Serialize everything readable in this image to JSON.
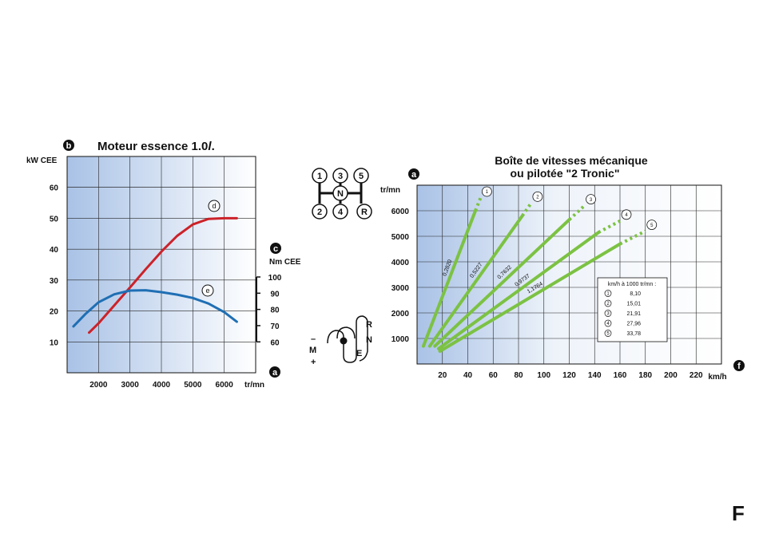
{
  "page_letter": "F",
  "chart_data": [
    {
      "type": "line",
      "title": "Moteur essence 1.0",
      "title_italic": "l",
      "title_suffix": ".",
      "xlabel": "tr/mn",
      "xlim": [
        1000,
        7000
      ],
      "x_ticks": [
        2000,
        3000,
        4000,
        5000,
        6000
      ],
      "ylabel_left": "kW CEE",
      "ylim_left": [
        0,
        70
      ],
      "y_ticks_left": [
        10,
        20,
        30,
        40,
        50,
        60
      ],
      "ylabel_right": "Nm CEE",
      "ylim_right": [
        60,
        100
      ],
      "y_ticks_right": [
        60,
        70,
        80,
        90,
        100
      ],
      "grid": true,
      "badges": {
        "left_axis": "b",
        "right_axis": "c",
        "x_axis": "a"
      },
      "series": [
        {
          "name": "d",
          "color": "#cc2229",
          "axis": "left",
          "x": [
            1700,
            2000,
            2500,
            3000,
            3500,
            4000,
            4500,
            5000,
            5500,
            6000,
            6400
          ],
          "y": [
            13,
            16,
            21.8,
            27.6,
            33.5,
            39.2,
            44.3,
            48,
            49.8,
            50,
            50
          ]
        },
        {
          "name": "e",
          "color": "#1f6fb4",
          "axis": "left",
          "x": [
            1200,
            1600,
            2000,
            2500,
            3000,
            3500,
            4000,
            4500,
            5000,
            5500,
            6000,
            6400
          ],
          "y": [
            15,
            19.2,
            22.8,
            25.4,
            26.6,
            26.7,
            26.1,
            25.3,
            24.2,
            22.4,
            19.6,
            16.5
          ]
        }
      ]
    },
    {
      "type": "line",
      "title_line1": "Boîte de vitesses mécanique",
      "title_line2": "ou pilotée \"2 Tronic\"",
      "xlabel": "km/h",
      "xlim": [
        0,
        240
      ],
      "x_ticks": [
        20,
        40,
        60,
        80,
        100,
        120,
        140,
        160,
        180,
        200,
        220
      ],
      "ylabel": "tr/mn",
      "ylim": [
        0,
        7000
      ],
      "y_ticks": [
        1000,
        2000,
        3000,
        4000,
        5000,
        6000
      ],
      "grid": true,
      "badges": {
        "y_axis": "a",
        "x_axis": "f"
      },
      "series_color": "#7cc243",
      "series": [
        {
          "name": "1",
          "ratio": "0,2820",
          "x": [
            5,
            46
          ],
          "y": [
            700,
            6000
          ],
          "dash_to": [
            50,
            6500
          ]
        },
        {
          "name": "2",
          "ratio": "0,5227",
          "x": [
            10,
            83
          ],
          "y": [
            700,
            5800
          ],
          "dash_to": [
            90,
            6300
          ]
        },
        {
          "name": "3",
          "ratio": "0,7632",
          "x": [
            14,
            120
          ],
          "y": [
            700,
            5650
          ],
          "dash_to": [
            132,
            6200
          ]
        },
        {
          "name": "4",
          "ratio": "0,9737",
          "x": [
            17,
            143
          ],
          "y": [
            600,
            5150
          ],
          "dash_to": [
            160,
            5600
          ]
        },
        {
          "name": "5",
          "ratio": "1,1764",
          "x": [
            18,
            160
          ],
          "y": [
            500,
            4700
          ],
          "dash_to": [
            180,
            5200
          ]
        }
      ],
      "legend": {
        "title": "km/h à 1000 tr/mn :",
        "entries": [
          {
            "gear": "1",
            "value": "8,10"
          },
          {
            "gear": "2",
            "value": "15,01"
          },
          {
            "gear": "3",
            "value": "21,91"
          },
          {
            "gear": "4",
            "value": "27,96"
          },
          {
            "gear": "5",
            "value": "33,78"
          }
        ]
      }
    }
  ],
  "shift_pattern": {
    "top": [
      "1",
      "3",
      "5"
    ],
    "center": "N",
    "bottom": [
      "2",
      "4",
      "R"
    ]
  },
  "tronic_lever": {
    "right_labels": [
      "R",
      "N",
      "E"
    ],
    "left_labels": [
      "–",
      "M",
      "+"
    ]
  }
}
